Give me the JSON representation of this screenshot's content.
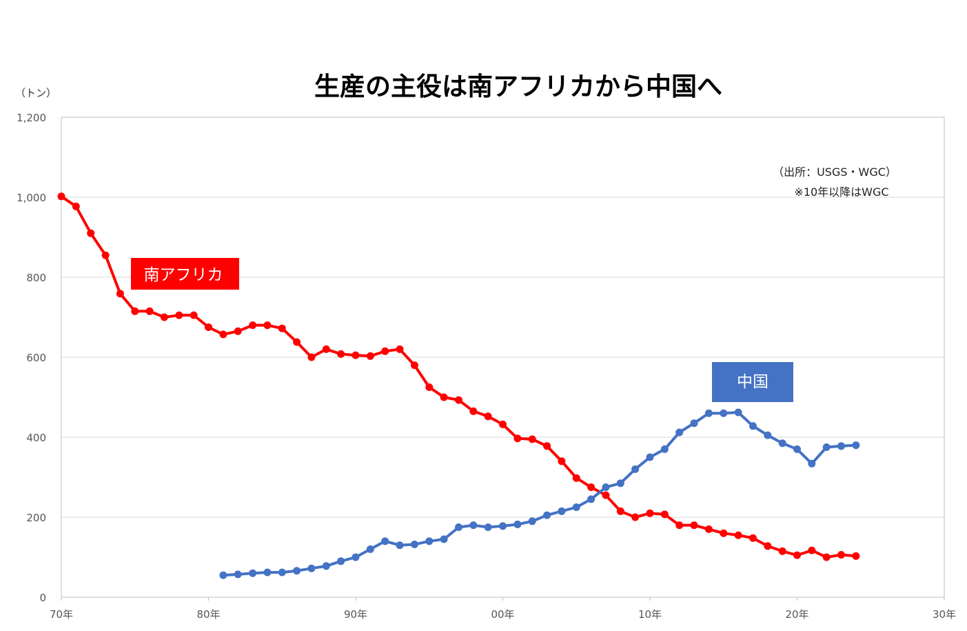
{
  "chart_data": {
    "type": "line",
    "title": "生産の主役は南アフリカから中国へ",
    "unit_label": "（トン）",
    "source": [
      "（出所：USGS・WGC）",
      "※10年以降はWGC"
    ],
    "xlim": [
      1970,
      2030
    ],
    "ylim": [
      0,
      1200
    ],
    "x_ticks": [
      {
        "value": 1970,
        "label": "70年"
      },
      {
        "value": 1980,
        "label": "80年"
      },
      {
        "value": 1990,
        "label": "90年"
      },
      {
        "value": 2000,
        "label": "00年"
      },
      {
        "value": 2010,
        "label": "10年"
      },
      {
        "value": 2020,
        "label": "20年"
      },
      {
        "value": 2030,
        "label": "30年"
      }
    ],
    "y_ticks": [
      {
        "value": 0,
        "label": "0"
      },
      {
        "value": 200,
        "label": "200"
      },
      {
        "value": 400,
        "label": "400"
      },
      {
        "value": 600,
        "label": "600"
      },
      {
        "value": 800,
        "label": "800"
      },
      {
        "value": 1000,
        "label": "1,000"
      },
      {
        "value": 1200,
        "label": "1,200"
      }
    ],
    "grid": true,
    "legend": "inline labels",
    "series": [
      {
        "name": "南アフリカ",
        "color": "#ff0000",
        "x": [
          1970,
          1971,
          1972,
          1973,
          1974,
          1975,
          1976,
          1977,
          1978,
          1979,
          1980,
          1981,
          1982,
          1983,
          1984,
          1985,
          1986,
          1987,
          1988,
          1989,
          1990,
          1991,
          1992,
          1993,
          1994,
          1995,
          1996,
          1997,
          1998,
          1999,
          2000,
          2001,
          2002,
          2003,
          2004,
          2005,
          2006,
          2007,
          2008,
          2009,
          2010,
          2011,
          2012,
          2013,
          2014,
          2015,
          2016,
          2017,
          2018,
          2019,
          2020,
          2021,
          2022,
          2023,
          2024
        ],
        "values": [
          1002,
          977,
          910,
          855,
          759,
          715,
          715,
          700,
          705,
          705,
          675,
          657,
          665,
          680,
          680,
          672,
          638,
          600,
          620,
          608,
          605,
          603,
          615,
          620,
          580,
          525,
          500,
          493,
          465,
          452,
          432,
          397,
          395,
          378,
          340,
          298,
          275,
          255,
          215,
          200,
          210,
          207,
          180,
          180,
          170,
          160,
          155,
          148,
          128,
          115,
          105,
          117,
          100,
          106,
          103
        ]
      },
      {
        "name": "中国",
        "color": "#4472c4",
        "x": [
          1981,
          1982,
          1983,
          1984,
          1985,
          1986,
          1987,
          1988,
          1989,
          1990,
          1991,
          1992,
          1993,
          1994,
          1995,
          1996,
          1997,
          1998,
          1999,
          2000,
          2001,
          2002,
          2003,
          2004,
          2005,
          2006,
          2007,
          2008,
          2009,
          2010,
          2011,
          2012,
          2013,
          2014,
          2015,
          2016,
          2017,
          2018,
          2019,
          2020,
          2021,
          2022,
          2023,
          2024
        ],
        "values": [
          55,
          57,
          60,
          62,
          62,
          66,
          72,
          78,
          90,
          100,
          120,
          140,
          130,
          132,
          140,
          145,
          175,
          180,
          175,
          178,
          182,
          190,
          205,
          215,
          225,
          245,
          275,
          285,
          320,
          350,
          370,
          412,
          435,
          460,
          460,
          462,
          428,
          405,
          385,
          370,
          334,
          375,
          378,
          380
        ]
      }
    ]
  }
}
